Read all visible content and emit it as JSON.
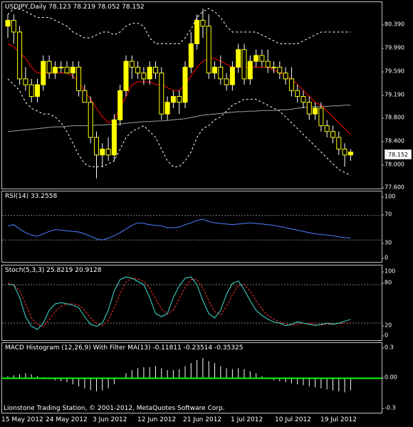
{
  "header": {
    "title": "USDJPY,Daily  78.123 78.219 78.052 78.152",
    "last_price": "78.152"
  },
  "rsi_panel": {
    "title": "RSI(14) 33.2558",
    "ticks": [
      "100",
      "70",
      "30",
      "0"
    ]
  },
  "stoch_panel": {
    "title": "Stoch(5,3,3) 25.8219 20.9128",
    "ticks": [
      "100",
      "80",
      "20",
      "0"
    ]
  },
  "macd_panel": {
    "title": "MACD Histogram (12,26,9) With Filter MA(13) -0.11811 -0.23514 -0.35325",
    "ticks": [
      "0.3",
      "0.00",
      "-0.3"
    ]
  },
  "footer": {
    "copyright": "Lionstone Trading Station, © 2001-2012, MetaQuotes Software Corp."
  },
  "price_axis": {
    "ticks": [
      "80.390",
      "79.990",
      "79.590",
      "79.190",
      "78.800",
      "78.400",
      "78.000",
      "77.600"
    ]
  },
  "x_axis": {
    "dates": [
      "15 May 2012",
      "24 May 2012",
      "3 Jun 2012",
      "12 Jun 2012",
      "21 Jun 2012",
      "1 Jul 2012",
      "10 Jul 2012",
      "19 Jul 2012"
    ]
  },
  "colors": {
    "bull": "#ffff00",
    "bear": "#ffff00",
    "ma_short": "#ff0000",
    "ma_long": "#a0a0a0",
    "bands": "#ffffff",
    "rsi": "#4a7fff",
    "stoch_main": "#40e0d0",
    "stoch_signal": "#ff3030",
    "macd_hist": "#ffffff",
    "macd_zero": "#00ff00"
  },
  "chart_data": [
    {
      "type": "candlestick",
      "title": "USDJPY,Daily",
      "ylim": [
        77.55,
        80.65
      ],
      "candles": [
        [
          80.3,
          80.5,
          80.1,
          80.4
        ],
        [
          80.4,
          80.5,
          80.0,
          80.2
        ],
        [
          80.2,
          80.3,
          79.3,
          79.4
        ],
        [
          79.4,
          79.6,
          79.2,
          79.3
        ],
        [
          79.3,
          79.4,
          79.0,
          79.1
        ],
        [
          79.1,
          79.4,
          79.0,
          79.3
        ],
        [
          79.3,
          79.8,
          79.2,
          79.7
        ],
        [
          79.7,
          79.8,
          79.4,
          79.5
        ],
        [
          79.5,
          79.7,
          79.4,
          79.6
        ],
        [
          79.6,
          79.7,
          79.5,
          79.6
        ],
        [
          79.6,
          79.7,
          79.5,
          79.5
        ],
        [
          79.5,
          79.7,
          79.4,
          79.6
        ],
        [
          79.6,
          79.7,
          79.1,
          79.2
        ],
        [
          79.2,
          79.3,
          79.0,
          79.0
        ],
        [
          79.0,
          79.1,
          78.3,
          78.4
        ],
        [
          78.4,
          78.5,
          77.7,
          78.1
        ],
        [
          78.1,
          78.3,
          77.9,
          78.2
        ],
        [
          78.2,
          78.4,
          78.0,
          78.1
        ],
        [
          78.1,
          78.8,
          78.0,
          78.7
        ],
        [
          78.7,
          79.3,
          78.6,
          79.2
        ],
        [
          79.2,
          79.8,
          79.1,
          79.7
        ],
        [
          79.7,
          79.8,
          79.4,
          79.6
        ],
        [
          79.6,
          79.7,
          79.4,
          79.5
        ],
        [
          79.5,
          79.6,
          79.3,
          79.4
        ],
        [
          79.4,
          79.7,
          79.3,
          79.6
        ],
        [
          79.6,
          79.7,
          79.4,
          79.5
        ],
        [
          79.5,
          79.6,
          78.7,
          78.8
        ],
        [
          78.8,
          79.1,
          78.7,
          79.0
        ],
        [
          79.0,
          79.2,
          78.9,
          79.1
        ],
        [
          79.1,
          79.2,
          78.8,
          79.0
        ],
        [
          79.0,
          79.7,
          78.9,
          79.6
        ],
        [
          79.6,
          80.2,
          79.5,
          80.0
        ],
        [
          80.0,
          80.5,
          79.9,
          80.4
        ],
        [
          80.4,
          80.6,
          80.1,
          80.3
        ],
        [
          80.3,
          80.5,
          79.4,
          79.5
        ],
        [
          79.5,
          79.7,
          79.4,
          79.6
        ],
        [
          79.6,
          79.8,
          79.3,
          79.4
        ],
        [
          79.4,
          79.5,
          79.2,
          79.3
        ],
        [
          79.3,
          79.7,
          79.2,
          79.6
        ],
        [
          79.6,
          80.0,
          79.5,
          79.9
        ],
        [
          79.9,
          80.0,
          79.3,
          79.4
        ],
        [
          79.4,
          79.8,
          79.3,
          79.7
        ],
        [
          79.7,
          79.9,
          79.6,
          79.8
        ],
        [
          79.8,
          79.9,
          79.6,
          79.7
        ],
        [
          79.7,
          79.9,
          79.5,
          79.6
        ],
        [
          79.6,
          79.7,
          79.5,
          79.6
        ],
        [
          79.6,
          79.7,
          79.4,
          79.5
        ],
        [
          79.5,
          79.6,
          79.3,
          79.4
        ],
        [
          79.4,
          79.6,
          79.1,
          79.2
        ],
        [
          79.2,
          79.3,
          79.0,
          79.1
        ],
        [
          79.1,
          79.2,
          78.9,
          79.0
        ],
        [
          79.0,
          79.1,
          78.7,
          78.8
        ],
        [
          78.8,
          79.0,
          78.7,
          78.9
        ],
        [
          78.9,
          79.0,
          78.5,
          78.6
        ],
        [
          78.6,
          78.7,
          78.4,
          78.5
        ],
        [
          78.5,
          78.6,
          78.3,
          78.4
        ],
        [
          78.4,
          78.5,
          78.1,
          78.2
        ],
        [
          78.2,
          78.3,
          77.9,
          78.1
        ],
        [
          78.1,
          78.2,
          78.0,
          78.15
        ]
      ],
      "ma_short": [
        80.0,
        79.95,
        79.85,
        79.75,
        79.6,
        79.5,
        79.5,
        79.5,
        79.5,
        79.5,
        79.5,
        79.45,
        79.35,
        79.2,
        79.05,
        78.9,
        78.75,
        78.65,
        78.7,
        78.9,
        79.1,
        79.3,
        79.35,
        79.35,
        79.35,
        79.3,
        79.3,
        79.25,
        79.2,
        79.2,
        79.3,
        79.45,
        79.6,
        79.7,
        79.75,
        79.75,
        79.7,
        79.65,
        79.6,
        79.6,
        79.6,
        79.6,
        79.6,
        79.6,
        79.6,
        79.55,
        79.5,
        79.45,
        79.4,
        79.3,
        79.2,
        79.1,
        79.0,
        78.95,
        78.85,
        78.75,
        78.65,
        78.55,
        78.45
      ],
      "ma_long": [
        78.5,
        78.51,
        78.52,
        78.53,
        78.54,
        78.55,
        78.56,
        78.57,
        78.58,
        78.58,
        78.59,
        78.6,
        78.6,
        78.6,
        78.6,
        78.61,
        78.61,
        78.62,
        78.62,
        78.63,
        78.64,
        78.65,
        78.66,
        78.67,
        78.67,
        78.68,
        78.68,
        78.69,
        78.7,
        78.71,
        78.72,
        78.74,
        78.76,
        78.78,
        78.79,
        78.8,
        78.81,
        78.82,
        78.83,
        78.84,
        78.84,
        78.85,
        78.85,
        78.86,
        78.86,
        78.86,
        78.87,
        78.87,
        78.88,
        78.9,
        78.91,
        78.92,
        78.92,
        78.93,
        78.93,
        78.94,
        78.94,
        78.95,
        78.95
      ],
      "band_upper": [
        80.5,
        80.6,
        80.6,
        80.55,
        80.5,
        80.45,
        80.45,
        80.45,
        80.4,
        80.35,
        80.3,
        80.2,
        80.15,
        80.1,
        80.1,
        80.15,
        80.2,
        80.2,
        80.15,
        80.2,
        80.3,
        80.35,
        80.35,
        80.3,
        80.1,
        80.0,
        80.0,
        80.0,
        80.0,
        80.0,
        80.1,
        80.25,
        80.45,
        80.55,
        80.6,
        80.55,
        80.45,
        80.3,
        80.2,
        80.2,
        80.2,
        80.2,
        80.2,
        80.15,
        80.1,
        80.05,
        80.0,
        80.0,
        80.0,
        80.0,
        80.05,
        80.1,
        80.15,
        80.2,
        80.2,
        80.2,
        80.2,
        80.2,
        80.2
      ],
      "band_lower": [
        79.4,
        79.3,
        79.2,
        79.0,
        78.9,
        78.85,
        78.8,
        78.8,
        78.75,
        78.65,
        78.5,
        78.3,
        78.1,
        77.95,
        77.9,
        77.9,
        77.9,
        77.95,
        78.0,
        78.2,
        78.4,
        78.5,
        78.55,
        78.6,
        78.5,
        78.4,
        78.2,
        78.0,
        77.9,
        77.9,
        78.0,
        78.15,
        78.4,
        78.55,
        78.6,
        78.7,
        78.75,
        78.85,
        78.95,
        79.0,
        79.05,
        79.05,
        79.05,
        79.0,
        78.95,
        78.9,
        78.85,
        78.75,
        78.65,
        78.55,
        78.45,
        78.35,
        78.25,
        78.15,
        78.05,
        77.95,
        77.85,
        77.8,
        77.75
      ]
    },
    {
      "type": "line",
      "title": "RSI(14) 33.2558",
      "ylim": [
        0,
        100
      ],
      "levels": [
        70,
        30
      ],
      "series": [
        {
          "name": "RSI(14)",
          "values": [
            53,
            55,
            48,
            42,
            38,
            36,
            40,
            44,
            47,
            46,
            45,
            44,
            43,
            40,
            36,
            32,
            30,
            33,
            37,
            42,
            48,
            54,
            58,
            57,
            55,
            54,
            53,
            50,
            50,
            51,
            55,
            58,
            62,
            64,
            60,
            58,
            57,
            56,
            55,
            56,
            57,
            58,
            57,
            56,
            55,
            54,
            52,
            50,
            48,
            46,
            44,
            42,
            40,
            39,
            38,
            37,
            35,
            34,
            33
          ]
        }
      ]
    },
    {
      "type": "line",
      "title": "Stoch(5,3,3) 25.8219 20.9128",
      "ylim": [
        0,
        100
      ],
      "levels": [
        80,
        20
      ],
      "series": [
        {
          "name": "Stoch(5,3,3)",
          "values": [
            80,
            80,
            60,
            30,
            15,
            10,
            20,
            40,
            50,
            52,
            50,
            48,
            44,
            30,
            18,
            15,
            20,
            40,
            70,
            88,
            92,
            90,
            85,
            80,
            60,
            35,
            30,
            35,
            60,
            78,
            90,
            92,
            80,
            55,
            35,
            28,
            40,
            65,
            82,
            86,
            72,
            55,
            40,
            32,
            26,
            22,
            20,
            16,
            18,
            22,
            20,
            18,
            16,
            18,
            20,
            18,
            20,
            23,
            25.8
          ]
        },
        {
          "name": "Signal",
          "values": [
            82,
            80,
            70,
            50,
            28,
            18,
            15,
            25,
            38,
            46,
            50,
            50,
            48,
            40,
            28,
            20,
            16,
            24,
            44,
            66,
            84,
            90,
            89,
            85,
            75,
            58,
            42,
            34,
            40,
            58,
            76,
            88,
            88,
            75,
            55,
            38,
            33,
            46,
            64,
            79,
            80,
            70,
            55,
            42,
            32,
            26,
            22,
            19,
            17,
            18,
            20,
            20,
            18,
            17,
            18,
            19,
            19,
            20,
            20.9
          ]
        }
      ]
    },
    {
      "type": "bar",
      "title": "MACD Histogram (12,26,9) With Filter MA(13) -0.11811 -0.23514 -0.35325",
      "ylim": [
        -0.3,
        0.3
      ],
      "values": [
        0.02,
        0.03,
        0.04,
        0.05,
        0.04,
        0.02,
        0.01,
        -0.01,
        -0.02,
        -0.03,
        -0.04,
        -0.06,
        -0.08,
        -0.1,
        -0.12,
        -0.13,
        -0.12,
        -0.1,
        -0.06,
        0.0,
        0.05,
        0.08,
        0.1,
        0.11,
        0.11,
        0.12,
        0.1,
        0.08,
        0.08,
        0.09,
        0.12,
        0.15,
        0.18,
        0.2,
        0.17,
        0.15,
        0.12,
        0.1,
        0.09,
        0.1,
        0.09,
        0.07,
        0.05,
        0.02,
        0.0,
        -0.02,
        -0.03,
        -0.04,
        -0.05,
        -0.06,
        -0.07,
        -0.08,
        -0.09,
        -0.1,
        -0.11,
        -0.12,
        -0.13,
        -0.14,
        -0.12
      ]
    }
  ]
}
